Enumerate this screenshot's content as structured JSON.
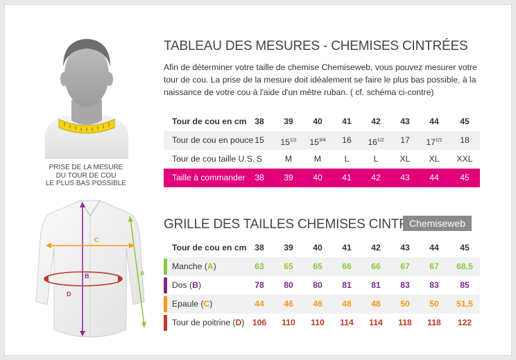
{
  "mesures": {
    "title": "TABLEAU DES MESURES - CHEMISES CINTRÉES",
    "intro": "Afin de déterminer votre taille de chemise Chemiseweb, vous pouvez mesurer votre tour de cou. La prise de la mesure doit idéalement se faire le plus bas possible, à la naissance de votre cou à l'aide d'un mètre ruban. ( cf. schéma ci-contre)",
    "rows": [
      {
        "label": "Tour de cou en cm",
        "values": [
          "38",
          "39",
          "40",
          "41",
          "42",
          "43",
          "44",
          "45"
        ]
      },
      {
        "label": "Tour de cou en pouce",
        "values": [
          "15",
          "15 1/2",
          "15 3/4",
          "16",
          "16 1/2",
          "17",
          "17 1/2",
          "18"
        ]
      },
      {
        "label": "Tour de cou taille U.S.",
        "values": [
          "S",
          "M",
          "M",
          "L",
          "L",
          "XL",
          "XL",
          "XXL"
        ]
      },
      {
        "label": "Taille à commander",
        "values": [
          "38",
          "39",
          "40",
          "41",
          "42",
          "43",
          "44",
          "45"
        ]
      }
    ]
  },
  "caption": [
    "PRISE DE LA MESURE",
    "DU TOUR DE COU",
    "LE PLUS BAS POSSIBLE"
  ],
  "grille": {
    "title": "GRILLE DES TAILLES CHEMISES CINTRÉES",
    "brand": "Chemiseweb",
    "header": {
      "label": "Tour de cou en cm",
      "values": [
        "38",
        "39",
        "40",
        "41",
        "42",
        "43",
        "44",
        "45"
      ]
    },
    "rows": [
      {
        "name": "Manche",
        "letter": "A",
        "color": "#8cc63f",
        "values": [
          "63",
          "65",
          "65",
          "66",
          "66",
          "67",
          "67",
          "68,5"
        ]
      },
      {
        "name": "Dos",
        "letter": "B",
        "color": "#7b2a8b",
        "values": [
          "78",
          "80",
          "80",
          "81",
          "81",
          "83",
          "83",
          "85"
        ]
      },
      {
        "name": "Epaule",
        "letter": "C",
        "color": "#f39c12",
        "values": [
          "44",
          "46",
          "46",
          "48",
          "48",
          "50",
          "50",
          "51,5"
        ]
      },
      {
        "name": "Tour de poitrine",
        "letter": "D",
        "color": "#c0392b",
        "values": [
          "106",
          "110",
          "110",
          "114",
          "114",
          "118",
          "118",
          "122"
        ]
      }
    ]
  },
  "diagram_labels": {
    "a": "A",
    "b": "B",
    "c": "C",
    "d": "D"
  },
  "icons": {
    "head": "head-measure-icon",
    "shirt": "shirt-diagram-icon"
  }
}
